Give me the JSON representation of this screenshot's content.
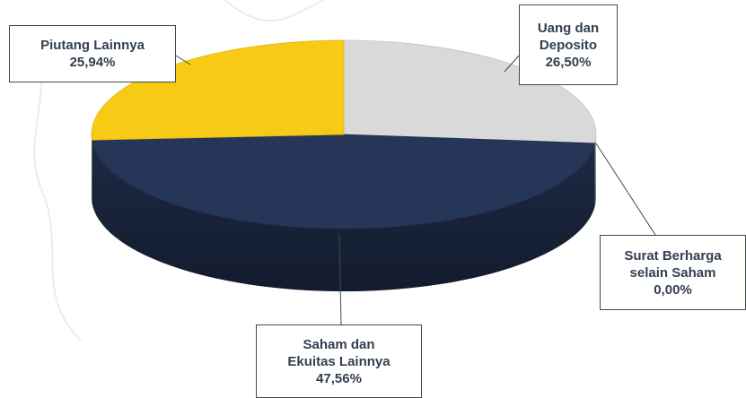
{
  "chart_data": {
    "type": "pie",
    "categories": [
      "Uang dan Deposito",
      "Surat Berharga selain Saham",
      "Saham dan Ekuitas Lainnya",
      "Piutang Lainnya"
    ],
    "values": [
      26.5,
      0.0,
      47.56,
      25.94
    ],
    "value_labels": [
      "26,50%",
      "0,00%",
      "47,56%",
      "25,94%"
    ],
    "colors": [
      "#d9d9d9",
      "#7f7f7f",
      "#253659",
      "#f7cb15"
    ]
  }
}
